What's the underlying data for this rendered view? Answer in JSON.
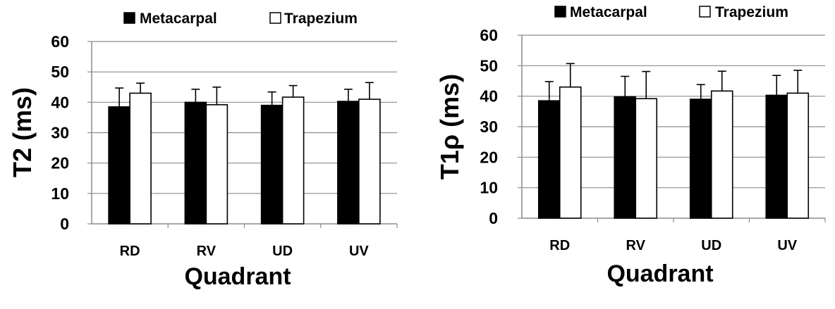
{
  "chart_data": [
    {
      "type": "bar",
      "categories": [
        "RD",
        "RV",
        "UD",
        "UV"
      ],
      "series": [
        {
          "name": "Metacarpal",
          "color": "#000000",
          "values": [
            38.5,
            40.0,
            39.0,
            40.3
          ],
          "errors": [
            6.2,
            4.3,
            4.4,
            4.0
          ]
        },
        {
          "name": "Trapezium",
          "color": "#ffffff",
          "values": [
            43.0,
            39.2,
            41.7,
            41.0
          ],
          "errors": [
            3.3,
            5.8,
            3.8,
            5.5
          ]
        }
      ],
      "title": "",
      "xlabel": "Quadrant",
      "ylabel": "T2 (ms)",
      "ylim": [
        0,
        60
      ],
      "yticks": [
        0,
        10,
        20,
        30,
        40,
        50,
        60
      ],
      "grid": true,
      "legend": "top"
    },
    {
      "type": "bar",
      "categories": [
        "RD",
        "RV",
        "UD",
        "UV"
      ],
      "series": [
        {
          "name": "Metacarpal",
          "color": "#000000",
          "values": [
            38.5,
            39.8,
            39.0,
            40.3
          ],
          "errors": [
            6.3,
            6.7,
            4.8,
            6.5
          ]
        },
        {
          "name": "Trapezium",
          "color": "#ffffff",
          "values": [
            43.0,
            39.2,
            41.7,
            41.0
          ],
          "errors": [
            7.7,
            8.9,
            6.5,
            7.5
          ]
        }
      ],
      "title": "",
      "xlabel": "Quadrant",
      "ylabel": "T1ρ (ms)",
      "ylim": [
        0,
        60
      ],
      "yticks": [
        0,
        10,
        20,
        30,
        40,
        50,
        60
      ],
      "grid": true,
      "legend": "top"
    }
  ]
}
